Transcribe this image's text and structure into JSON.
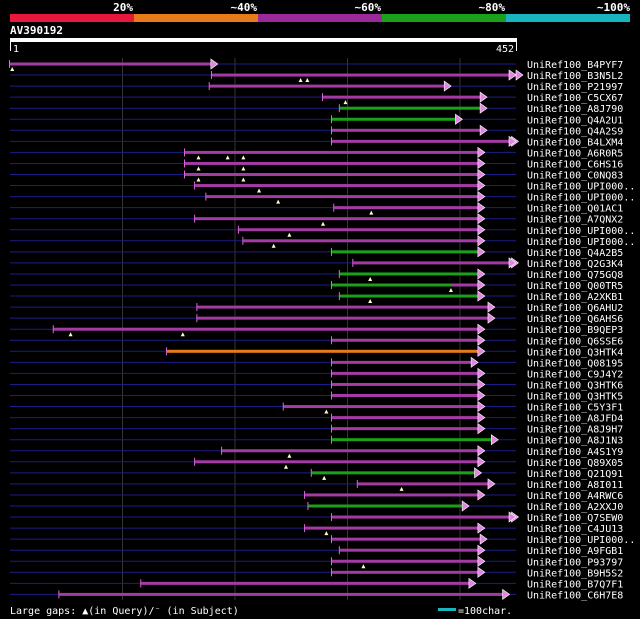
{
  "legend": {
    "labels": [
      "20%",
      "~40%",
      "~60%",
      "~80%",
      "~100%"
    ],
    "colors": [
      "#e8173d",
      "#e87a1a",
      "#9a2a9a",
      "#1aa01a",
      "#18b4c0"
    ]
  },
  "query": {
    "name": "AV390192",
    "length": 452,
    "start_label": "1",
    "end_label": "452"
  },
  "hits": [
    {
      "name": "UniRef100_B4PYF7",
      "color": "#a43aa4",
      "start": 1,
      "end": 180,
      "gaps": [
        3
      ],
      "segments": [],
      "right_mark": false
    },
    {
      "name": "UniRef100_B3N5L2",
      "color": "#a43aa4",
      "start": 181,
      "end": 452,
      "gaps": [
        260,
        266
      ],
      "segments": [],
      "right_mark": true
    },
    {
      "name": "UniRef100_P21997",
      "color": "#a43aa4",
      "start": 179,
      "end": 388,
      "gaps": [],
      "segments": [],
      "right_mark": false
    },
    {
      "name": "UniRef100_C5CX67",
      "color": "#a43aa4",
      "start": 280,
      "end": 420,
      "gaps": [
        300
      ],
      "segments": [],
      "right_mark": false
    },
    {
      "name": "UniRef100_A8J790",
      "color": "#1aa01a",
      "start": 295,
      "end": 420,
      "gaps": [],
      "segments": [],
      "right_mark": false
    },
    {
      "name": "UniRef100_Q4A2U1",
      "color": "#1aa01a",
      "start": 288,
      "end": 398,
      "gaps": [],
      "segments": [],
      "right_mark": false
    },
    {
      "name": "UniRef100_Q4A2S9",
      "color": "#a43aa4",
      "start": 288,
      "end": 420,
      "gaps": [],
      "segments": [],
      "right_mark": false
    },
    {
      "name": "UniRef100_B4LXM4",
      "color": "#a43aa4",
      "start": 288,
      "end": 448,
      "gaps": [],
      "segments": [],
      "right_mark": true
    },
    {
      "name": "UniRef100_A6R0R5",
      "color": "#a43aa4",
      "start": 157,
      "end": 418,
      "gaps": [
        169,
        195,
        209
      ],
      "segments": [],
      "right_mark": false
    },
    {
      "name": "UniRef100_C6HS16",
      "color": "#a43aa4",
      "start": 157,
      "end": 418,
      "gaps": [
        169,
        209
      ],
      "segments": [],
      "right_mark": false
    },
    {
      "name": "UniRef100_C0NQ83",
      "color": "#a43aa4",
      "start": 157,
      "end": 418,
      "gaps": [
        169,
        209
      ],
      "segments": [],
      "right_mark": false
    },
    {
      "name": "UniRef100_UPI000..",
      "color": "#a43aa4",
      "start": 166,
      "end": 418,
      "gaps": [
        223
      ],
      "segments": [],
      "right_mark": false
    },
    {
      "name": "UniRef100_UPI000..",
      "color": "#a43aa4",
      "start": 176,
      "end": 418,
      "gaps": [
        240
      ],
      "segments": [],
      "right_mark": false
    },
    {
      "name": "UniRef100_Q01AC1",
      "color": "#a43aa4",
      "start": 290,
      "end": 418,
      "gaps": [
        323
      ],
      "segments": [],
      "right_mark": false
    },
    {
      "name": "UniRef100_A7QNX2",
      "color": "#a43aa4",
      "start": 166,
      "end": 418,
      "gaps": [
        280
      ],
      "segments": [],
      "right_mark": false
    },
    {
      "name": "UniRef100_UPI000..",
      "color": "#a43aa4",
      "start": 205,
      "end": 418,
      "gaps": [
        250
      ],
      "segments": [],
      "right_mark": false
    },
    {
      "name": "UniRef100_UPI000..",
      "color": "#a43aa4",
      "start": 209,
      "end": 418,
      "gaps": [
        236
      ],
      "segments": [],
      "right_mark": false
    },
    {
      "name": "UniRef100_Q4A2B5",
      "color": "#1aa01a",
      "start": 288,
      "end": 418,
      "gaps": [],
      "segments": [],
      "right_mark": false
    },
    {
      "name": "UniRef100_Q2G3K4",
      "color": "#a43aa4",
      "start": 307,
      "end": 448,
      "gaps": [],
      "segments": [],
      "right_mark": true
    },
    {
      "name": "UniRef100_Q75GQ8",
      "color": "#1aa01a",
      "start": 295,
      "end": 418,
      "gaps": [
        322
      ],
      "segments": [],
      "right_mark": false
    },
    {
      "name": "UniRef100_Q00TR5",
      "color": "#1aa01a",
      "start": 288,
      "end": 418,
      "gaps": [
        394
      ],
      "segments": [
        {
          "start": 395,
          "end": 418,
          "color": "#a43aa4"
        }
      ],
      "right_mark": false
    },
    {
      "name": "UniRef100_A2XKB1",
      "color": "#1aa01a",
      "start": 295,
      "end": 418,
      "gaps": [
        322
      ],
      "segments": [],
      "right_mark": false
    },
    {
      "name": "UniRef100_Q6AHU2",
      "color": "#a43aa4",
      "start": 168,
      "end": 427,
      "gaps": [],
      "segments": [],
      "right_mark": false
    },
    {
      "name": "UniRef100_Q6AHS6",
      "color": "#a43aa4",
      "start": 168,
      "end": 427,
      "gaps": [],
      "segments": [],
      "right_mark": false
    },
    {
      "name": "UniRef100_B9QEP3",
      "color": "#a43aa4",
      "start": 40,
      "end": 418,
      "gaps": [
        55,
        155
      ],
      "segments": [],
      "right_mark": false
    },
    {
      "name": "UniRef100_Q6SSE6",
      "color": "#a43aa4",
      "start": 288,
      "end": 418,
      "gaps": [],
      "segments": [],
      "right_mark": false
    },
    {
      "name": "UniRef100_Q3HTK4",
      "color": "#e87a1a",
      "start": 141,
      "end": 418,
      "gaps": [],
      "segments": [],
      "right_mark": false
    },
    {
      "name": "UniRef100_Q08195",
      "color": "#a43aa4",
      "start": 288,
      "end": 412,
      "gaps": [],
      "segments": [],
      "right_mark": false
    },
    {
      "name": "UniRef100_C9J4Y2",
      "color": "#a43aa4",
      "start": 288,
      "end": 418,
      "gaps": [],
      "segments": [],
      "right_mark": false
    },
    {
      "name": "UniRef100_Q3HTK6",
      "color": "#a43aa4",
      "start": 288,
      "end": 418,
      "gaps": [],
      "segments": [],
      "right_mark": false
    },
    {
      "name": "UniRef100_Q3HTK5",
      "color": "#a43aa4",
      "start": 288,
      "end": 418,
      "gaps": [],
      "segments": [],
      "right_mark": false
    },
    {
      "name": "UniRef100_C5Y3F1",
      "color": "#a43aa4",
      "start": 245,
      "end": 418,
      "gaps": [
        283
      ],
      "segments": [],
      "right_mark": false
    },
    {
      "name": "UniRef100_A8JFD4",
      "color": "#a43aa4",
      "start": 288,
      "end": 418,
      "gaps": [],
      "segments": [],
      "right_mark": false
    },
    {
      "name": "UniRef100_A8J9H7",
      "color": "#a43aa4",
      "start": 288,
      "end": 418,
      "gaps": [],
      "segments": [],
      "right_mark": false
    },
    {
      "name": "UniRef100_A8J1N3",
      "color": "#1aa01a",
      "start": 288,
      "end": 430,
      "gaps": [],
      "segments": [],
      "right_mark": false
    },
    {
      "name": "UniRef100_A4S1Y9",
      "color": "#a43aa4",
      "start": 190,
      "end": 418,
      "gaps": [
        250
      ],
      "segments": [],
      "right_mark": false
    },
    {
      "name": "UniRef100_Q89X05",
      "color": "#a43aa4",
      "start": 166,
      "end": 418,
      "gaps": [
        247
      ],
      "segments": [],
      "right_mark": false
    },
    {
      "name": "UniRef100_Q21Q91",
      "color": "#1aa01a",
      "start": 270,
      "end": 415,
      "gaps": [
        281
      ],
      "segments": [],
      "right_mark": false
    },
    {
      "name": "UniRef100_A8I011",
      "color": "#a43aa4",
      "start": 311,
      "end": 427,
      "gaps": [
        350
      ],
      "segments": [],
      "right_mark": false
    },
    {
      "name": "UniRef100_A4RWC6",
      "color": "#a43aa4",
      "start": 264,
      "end": 418,
      "gaps": [],
      "segments": [],
      "right_mark": false
    },
    {
      "name": "UniRef100_A2XXJ0",
      "color": "#1aa01a",
      "start": 267,
      "end": 404,
      "gaps": [],
      "segments": [],
      "right_mark": false
    },
    {
      "name": "UniRef100_Q7SEW0",
      "color": "#a43aa4",
      "start": 288,
      "end": 448,
      "gaps": [],
      "segments": [],
      "right_mark": true
    },
    {
      "name": "UniRef100_C4JU13",
      "color": "#a43aa4",
      "start": 264,
      "end": 418,
      "gaps": [
        283
      ],
      "segments": [],
      "right_mark": false
    },
    {
      "name": "UniRef100_UPI000..",
      "color": "#a43aa4",
      "start": 288,
      "end": 420,
      "gaps": [],
      "segments": [],
      "right_mark": false
    },
    {
      "name": "UniRef100_A9FGB1",
      "color": "#a43aa4",
      "start": 295,
      "end": 418,
      "gaps": [],
      "segments": [],
      "right_mark": false
    },
    {
      "name": "UniRef100_P93797",
      "color": "#a43aa4",
      "start": 288,
      "end": 418,
      "gaps": [
        316
      ],
      "segments": [],
      "right_mark": false
    },
    {
      "name": "UniRef100_B9H5S2",
      "color": "#a43aa4",
      "start": 288,
      "end": 418,
      "gaps": [],
      "segments": [],
      "right_mark": false
    },
    {
      "name": "UniRef100_B7Q7F1",
      "color": "#a43aa4",
      "start": 118,
      "end": 410,
      "gaps": [],
      "segments": [],
      "right_mark": false
    },
    {
      "name": "UniRef100_C6H7E8",
      "color": "#a43aa4",
      "start": 45,
      "end": 440,
      "gaps": [],
      "segments": [],
      "right_mark": false
    }
  ],
  "footer": {
    "gap_legend": "Large gaps: ▲(in Query)/⁻ (in Subject)",
    "scale_label": "=100char.",
    "scale_color": "#18b4c0"
  }
}
